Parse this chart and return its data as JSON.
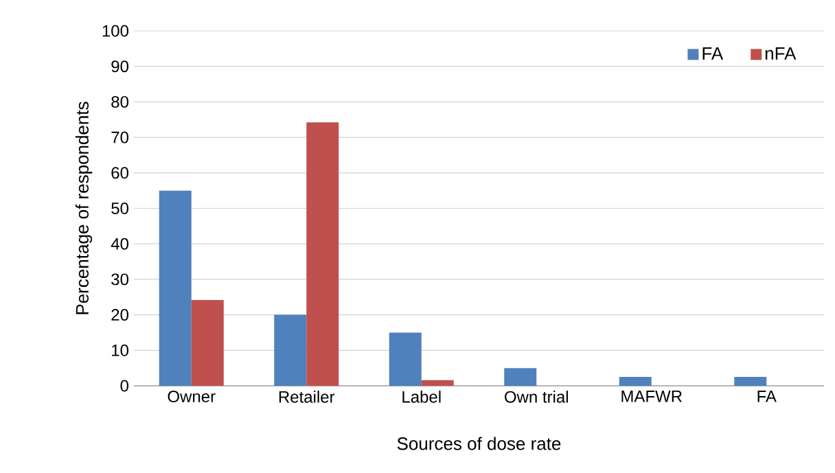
{
  "chart_data": {
    "type": "bar",
    "xlabel": "Sources of dose rate",
    "ylabel": "Percentage of respondents",
    "categories": [
      "Owner",
      "Retailer",
      "Label",
      "Own trial",
      "MAFWR",
      "FA"
    ],
    "series": [
      {
        "name": "FA",
        "color": "#4f81bd",
        "values": [
          55,
          20,
          15,
          5,
          2.5,
          2.5
        ]
      },
      {
        "name": "nFA",
        "color": "#c0504d",
        "values": [
          24.2,
          74.2,
          1.6,
          0,
          0,
          0
        ]
      }
    ],
    "ylim": [
      0,
      100
    ],
    "yticks": [
      0,
      10,
      20,
      30,
      40,
      50,
      60,
      70,
      80,
      90,
      100
    ],
    "grid": "y",
    "legend": "top right"
  }
}
